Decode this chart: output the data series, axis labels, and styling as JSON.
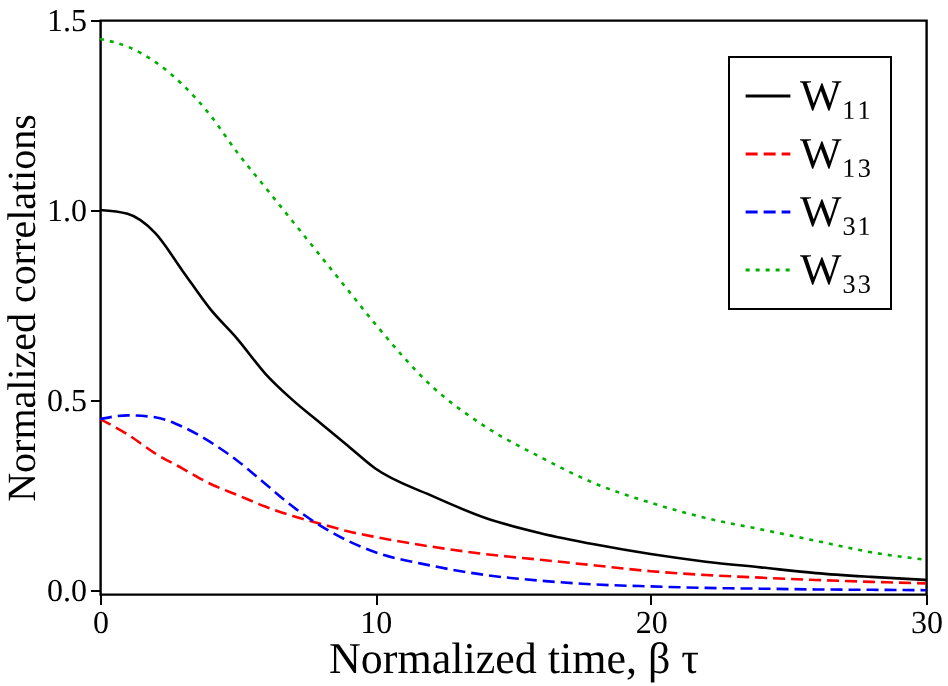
{
  "chart_data": {
    "type": "line",
    "xlabel": "Normalized time, β τ",
    "ylabel": "Normalized correlations",
    "x": [
      0,
      1,
      2,
      3,
      4,
      5,
      6,
      7,
      8,
      9,
      10,
      12,
      14,
      16,
      18,
      20,
      22,
      24,
      26,
      28,
      30
    ],
    "xlim": [
      0,
      30
    ],
    "xticks": [
      0,
      10,
      20,
      30
    ],
    "ylim": [
      -0.01,
      1.5
    ],
    "yticks": [
      {
        "value": 0,
        "label": "0.0"
      },
      {
        "value": 0.5,
        "label": "0.5"
      },
      {
        "value": 1,
        "label": "1.0"
      },
      {
        "value": 1.5,
        "label": "1.5"
      }
    ],
    "legend": "top right",
    "series": [
      {
        "name": "W₁₁",
        "color": "#000000",
        "line_style": "solid",
        "values": [
          1.0,
          0.99,
          0.94,
          0.84,
          0.74,
          0.66,
          0.57,
          0.5,
          0.44,
          0.38,
          0.32,
          0.25,
          0.19,
          0.15,
          0.12,
          0.095,
          0.075,
          0.06,
          0.045,
          0.035,
          0.027
        ]
      },
      {
        "name": "W₁₃",
        "color": "#ff0000",
        "line_style": "dashed",
        "values": [
          0.45,
          0.41,
          0.36,
          0.32,
          0.28,
          0.25,
          0.22,
          0.195,
          0.175,
          0.155,
          0.14,
          0.115,
          0.095,
          0.08,
          0.065,
          0.05,
          0.04,
          0.033,
          0.027,
          0.022,
          0.018
        ]
      },
      {
        "name": "W₃₁",
        "color": "#0000ff",
        "line_style": "dashed",
        "values": [
          0.45,
          0.46,
          0.455,
          0.43,
          0.39,
          0.34,
          0.28,
          0.22,
          0.17,
          0.13,
          0.1,
          0.065,
          0.04,
          0.025,
          0.015,
          0.01,
          0.006,
          0.004,
          0.002,
          0.001,
          0
        ]
      },
      {
        "name": "W₃₃",
        "color": "#00b000",
        "line_style": "dotted",
        "values": [
          1.45,
          1.43,
          1.39,
          1.33,
          1.25,
          1.15,
          1.06,
          0.97,
          0.88,
          0.79,
          0.7,
          0.54,
          0.43,
          0.35,
          0.28,
          0.23,
          0.19,
          0.16,
          0.13,
          0.1,
          0.08
        ]
      }
    ]
  }
}
